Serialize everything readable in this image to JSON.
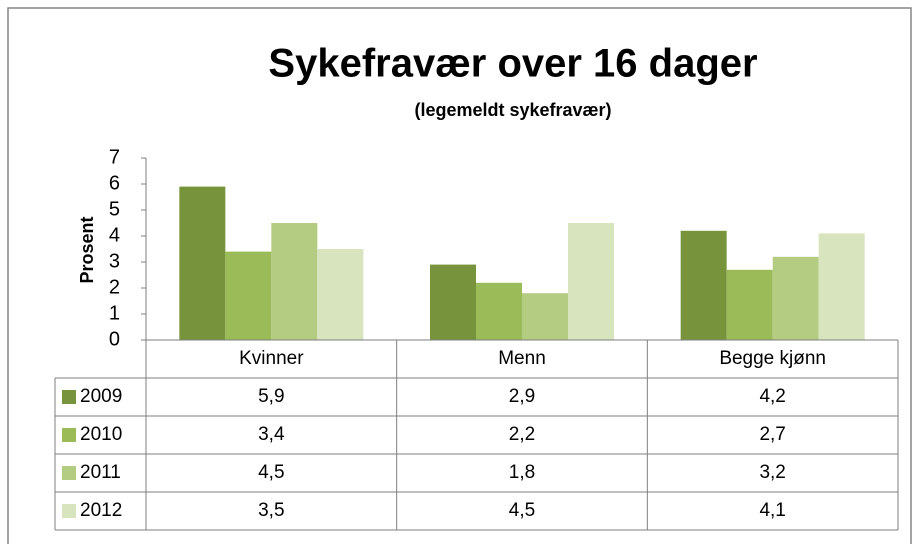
{
  "chart_data": {
    "type": "bar",
    "title": "Sykefravær over 16 dager",
    "subtitle": "(legemeldt sykefravær)",
    "y_label": "Prosent",
    "categories": [
      "Kvinner",
      "Menn",
      "Begge kjønn"
    ],
    "series": [
      {
        "name": "2009",
        "color": "#77933c",
        "values": [
          5.9,
          2.9,
          4.2
        ],
        "value_labels": [
          "5,9",
          "2,9",
          "4,2"
        ]
      },
      {
        "name": "2010",
        "color": "#9bbb59",
        "values": [
          3.4,
          2.2,
          2.7
        ],
        "value_labels": [
          "3,4",
          "2,2",
          "2,7"
        ]
      },
      {
        "name": "2011",
        "color": "#b3cc82",
        "values": [
          4.5,
          1.8,
          3.2
        ],
        "value_labels": [
          "4,5",
          "1,8",
          "3,2"
        ]
      },
      {
        "name": "2012",
        "color": "#d7e4bd",
        "values": [
          3.5,
          4.5,
          4.1
        ],
        "value_labels": [
          "3,5",
          "4,5",
          "4,1"
        ]
      }
    ],
    "ylim": [
      0,
      7
    ],
    "yticks": [
      0,
      1,
      2,
      3,
      4,
      5,
      6,
      7
    ],
    "grid": false
  }
}
